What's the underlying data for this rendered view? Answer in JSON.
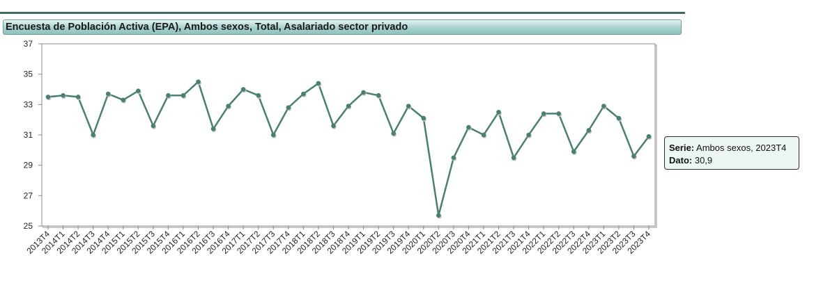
{
  "header": {
    "title": "Encuesta de Población Activa (EPA), Ambos sexos, Total, Asalariado sector privado"
  },
  "tooltip": {
    "serie_label": "Serie:",
    "serie_value": "Ambos sexos, 2023T4",
    "dato_label": "Dato:",
    "dato_value": "30,9"
  },
  "colors": {
    "line": "#4a7f74",
    "grid": "#d9d9d9",
    "axis": "#888888"
  },
  "chart_data": {
    "type": "line",
    "title": "Encuesta de Población Activa (EPA), Ambos sexos, Total, Asalariado sector privado",
    "xlabel": "",
    "ylabel": "",
    "ylim": [
      25,
      37
    ],
    "yticks": [
      25,
      27,
      29,
      31,
      33,
      35,
      37
    ],
    "grid": true,
    "categories": [
      "2013T4",
      "2014T1",
      "2014T2",
      "2014T3",
      "2014T4",
      "2015T1",
      "2015T2",
      "2015T3",
      "2015T4",
      "2016T1",
      "2016T2",
      "2016T3",
      "2016T4",
      "2017T1",
      "2017T2",
      "2017T3",
      "2017T4",
      "2018T1",
      "2018T2",
      "2018T3",
      "2018T4",
      "2019T1",
      "2019T2",
      "2019T3",
      "2019T4",
      "2020T1",
      "2020T2",
      "2020T3",
      "2020T4",
      "2021T1",
      "2021T2",
      "2021T3",
      "2021T4",
      "2022T1",
      "2022T2",
      "2022T3",
      "2022T4",
      "2023T1",
      "2023T2",
      "2023T3",
      "2023T4"
    ],
    "series": [
      {
        "values": [
          33.5,
          33.6,
          33.5,
          31.0,
          33.7,
          33.3,
          33.9,
          31.6,
          33.6,
          33.6,
          34.5,
          31.4,
          32.9,
          34.0,
          33.6,
          31.0,
          32.8,
          33.7,
          34.4,
          31.6,
          32.9,
          33.8,
          33.6,
          31.1,
          32.9,
          32.1,
          25.7,
          29.5,
          31.5,
          31.0,
          32.5,
          29.5,
          31.0,
          32.4,
          32.4,
          29.9,
          31.3,
          32.9,
          32.1,
          29.6,
          30.9
        ]
      }
    ]
  }
}
